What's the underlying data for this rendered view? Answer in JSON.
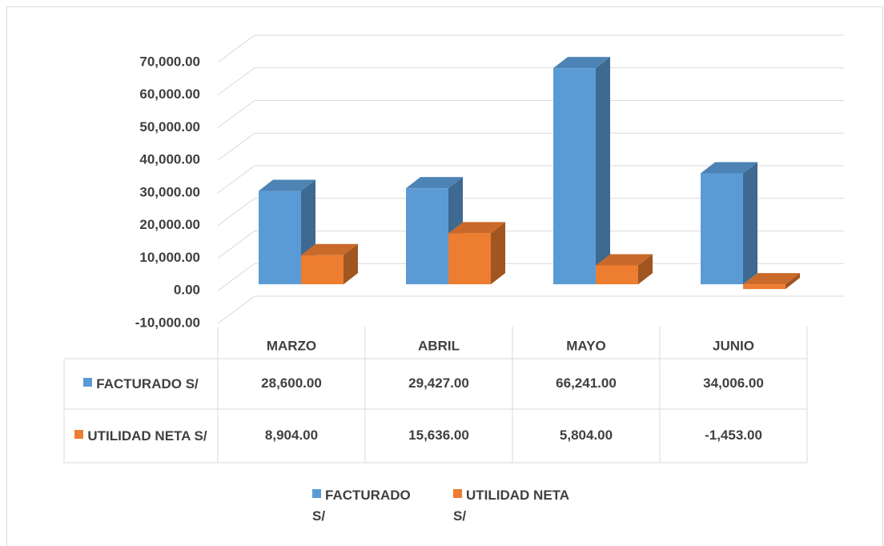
{
  "chart_data": {
    "type": "bar3d",
    "categories": [
      "MARZO",
      "ABRIL",
      "MAYO",
      "JUNIO"
    ],
    "series": [
      {
        "name": "FACTURADO S/",
        "color": "#5b9bd5",
        "values": [
          28600,
          29427,
          66241,
          34006
        ],
        "value_labels": [
          "28,600.00",
          "29,427.00",
          "66,241.00",
          "34,006.00"
        ]
      },
      {
        "name": "UTILIDAD NETA S/",
        "color": "#ed7d31",
        "values": [
          8904,
          15636,
          5804,
          -1453
        ],
        "value_labels": [
          "8,904.00",
          "15,636.00",
          "5,804.00",
          "-1,453.00"
        ]
      }
    ],
    "ylim": [
      -10000,
      70000
    ],
    "yticks": [
      {
        "value": -10000,
        "label": "-10,000.00"
      },
      {
        "value": 0,
        "label": "0.00"
      },
      {
        "value": 10000,
        "label": "10,000.00"
      },
      {
        "value": 20000,
        "label": "20,000.00"
      },
      {
        "value": 30000,
        "label": "30,000.00"
      },
      {
        "value": 40000,
        "label": "40,000.00"
      },
      {
        "value": 50000,
        "label": "50,000.00"
      },
      {
        "value": 60000,
        "label": "60,000.00"
      },
      {
        "value": 70000,
        "label": "70,000.00"
      }
    ],
    "grid": true,
    "legend": "bottom",
    "data_table": true
  }
}
